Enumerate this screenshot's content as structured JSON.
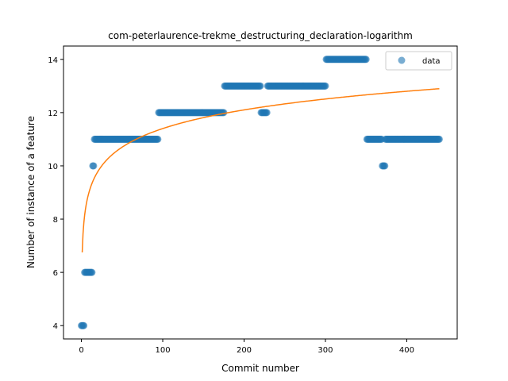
{
  "chart_data": {
    "type": "scatter",
    "title": "com-peterlaurence-trekme_destructuring_declaration-logarithm",
    "xlabel": "Commit number",
    "ylabel": "Number of instance of a feature",
    "xlim": [
      -22,
      462
    ],
    "ylim": [
      3.5,
      14.5
    ],
    "xticks": [
      0,
      100,
      200,
      300,
      400
    ],
    "yticks": [
      4,
      6,
      8,
      10,
      12,
      14
    ],
    "grid": false,
    "legend_position": "top-right",
    "series": [
      {
        "name": "data",
        "kind": "scatter",
        "color": "#1f77b4",
        "segments": [
          {
            "x_start": 0,
            "x_end": 3,
            "y": 4
          },
          {
            "x_start": 4,
            "x_end": 13,
            "y": 6
          },
          {
            "x_start": 14,
            "x_end": 15,
            "y": 10
          },
          {
            "x_start": 16,
            "x_end": 94,
            "y": 11
          },
          {
            "x_start": 95,
            "x_end": 175,
            "y": 12
          },
          {
            "x_start": 176,
            "x_end": 220,
            "y": 13
          },
          {
            "x_start": 221,
            "x_end": 228,
            "y": 12
          },
          {
            "x_start": 229,
            "x_end": 300,
            "y": 13
          },
          {
            "x_start": 301,
            "x_end": 350,
            "y": 14
          },
          {
            "x_start": 351,
            "x_end": 369,
            "y": 11
          },
          {
            "x_start": 370,
            "x_end": 373,
            "y": 10
          },
          {
            "x_start": 374,
            "x_end": 440,
            "y": 11
          }
        ]
      },
      {
        "kind": "line",
        "color": "#ff7f0e",
        "fit": {
          "form": "a + b*ln(x)",
          "a": 6.75,
          "b": 1.01,
          "x_start": 1,
          "x_end": 440
        }
      }
    ]
  }
}
